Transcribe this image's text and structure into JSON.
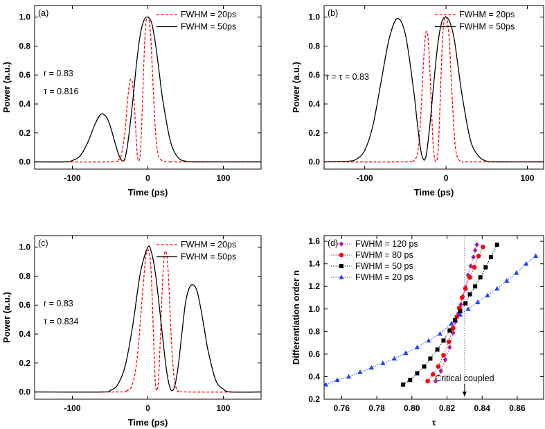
{
  "chart_data": [
    {
      "id": "a",
      "type": "line",
      "panel_label": "(a)",
      "xlabel": "Time (ps)",
      "ylabel": "Power (a.u.)",
      "xlim": [
        -150,
        150
      ],
      "ylim": [
        -0.05,
        1.08
      ],
      "xticks": [
        -100,
        0,
        100
      ],
      "xtick_labels": [
        "-100",
        "0",
        "100"
      ],
      "yticks": [
        0.0,
        0.2,
        0.4,
        0.6,
        0.8,
        1.0
      ],
      "ytick_labels": [
        "0.0",
        "0.2",
        "0.4",
        "0.6",
        "0.8",
        "1.0"
      ],
      "annotation_lines": [
        "r = 0.83",
        "τ = 0.816"
      ],
      "legend_position": "top-right",
      "series": [
        {
          "name": "FWHM = 20ps",
          "color": "#ff0000",
          "dash": "dashed",
          "x": [
            -150,
            -50,
            -40,
            -35,
            -30,
            -27,
            -24,
            -22,
            -20,
            -18,
            -16,
            -14,
            -12,
            -10,
            -8,
            -6,
            -4,
            -2,
            0,
            2,
            4,
            6,
            8,
            10,
            12,
            15,
            20,
            25,
            30,
            40,
            150
          ],
          "y": [
            0,
            0,
            0.01,
            0.05,
            0.22,
            0.42,
            0.55,
            0.57,
            0.53,
            0.4,
            0.22,
            0.05,
            0.005,
            0.06,
            0.28,
            0.58,
            0.85,
            0.98,
            1.0,
            0.97,
            0.85,
            0.63,
            0.41,
            0.22,
            0.1,
            0.03,
            0.005,
            0,
            0,
            0,
            0
          ]
        },
        {
          "name": "FWHM = 50ps",
          "color": "#000000",
          "dash": "solid",
          "x": [
            -150,
            -110,
            -100,
            -90,
            -80,
            -70,
            -62,
            -55,
            -50,
            -45,
            -40,
            -36,
            -33,
            -30,
            -26,
            -20,
            -15,
            -10,
            -5,
            0,
            5,
            10,
            15,
            20,
            30,
            40,
            50,
            60,
            150
          ],
          "y": [
            0,
            0,
            0.01,
            0.04,
            0.13,
            0.26,
            0.33,
            0.31,
            0.25,
            0.16,
            0.07,
            0.02,
            0.005,
            0.03,
            0.15,
            0.42,
            0.68,
            0.88,
            0.98,
            1.0,
            0.96,
            0.82,
            0.62,
            0.42,
            0.14,
            0.03,
            0.005,
            0,
            0
          ]
        }
      ]
    },
    {
      "id": "b",
      "type": "line",
      "panel_label": "(b)",
      "xlabel": "Time (ps)",
      "ylabel": "Power (a.u.)",
      "xlim": [
        -150,
        120
      ],
      "ylim": [
        -0.05,
        1.08
      ],
      "xticks": [
        -100,
        0,
        100
      ],
      "xtick_labels": [
        "-100",
        "0",
        "100"
      ],
      "yticks": [
        0.0,
        0.2,
        0.4,
        0.6,
        0.8,
        1.0
      ],
      "ytick_labels": [
        "0.0",
        "0.2",
        "0.4",
        "0.6",
        "0.8",
        "1.0"
      ],
      "annotation_lines": [
        "r = τ = 0.83"
      ],
      "legend_position": "top-right",
      "series": [
        {
          "name": "FWHM = 20ps",
          "color": "#ff0000",
          "dash": "dashed",
          "x": [
            -150,
            -50,
            -40,
            -35,
            -32,
            -29,
            -26,
            -24,
            -22,
            -20,
            -18,
            -16,
            -14,
            -12,
            -10,
            -8,
            -6,
            -4,
            -2,
            0,
            2,
            4,
            6,
            8,
            10,
            12,
            15,
            20,
            30,
            120
          ],
          "y": [
            0,
            0,
            0.01,
            0.06,
            0.23,
            0.55,
            0.84,
            0.9,
            0.85,
            0.65,
            0.38,
            0.13,
            0.02,
            0.005,
            0.06,
            0.3,
            0.62,
            0.88,
            0.99,
            1.0,
            0.96,
            0.84,
            0.62,
            0.4,
            0.2,
            0.08,
            0.02,
            0,
            0,
            0
          ]
        },
        {
          "name": "FWHM = 50ps",
          "color": "#000000",
          "dash": "solid",
          "x": [
            -150,
            -120,
            -110,
            -100,
            -90,
            -80,
            -70,
            -60,
            -50,
            -40,
            -35,
            -30,
            -25,
            -20,
            -15,
            -10,
            -5,
            0,
            5,
            10,
            15,
            20,
            30,
            40,
            50,
            60,
            120
          ],
          "y": [
            0,
            0.005,
            0.02,
            0.08,
            0.25,
            0.55,
            0.85,
            0.99,
            0.88,
            0.5,
            0.25,
            0.05,
            0.03,
            0.25,
            0.55,
            0.82,
            0.97,
            1.0,
            0.96,
            0.85,
            0.65,
            0.45,
            0.15,
            0.04,
            0.005,
            0,
            0
          ]
        }
      ]
    },
    {
      "id": "c",
      "type": "line",
      "panel_label": "(c)",
      "xlabel": "Time (ps)",
      "ylabel": "Power (a.u.)",
      "xlim": [
        -150,
        150
      ],
      "ylim": [
        -0.05,
        1.08
      ],
      "xticks": [
        -100,
        0,
        100
      ],
      "xtick_labels": [
        "-100",
        "0",
        "100"
      ],
      "yticks": [
        0.0,
        0.2,
        0.4,
        0.6,
        0.8,
        1.0
      ],
      "ytick_labels": [
        "0.0",
        "0.2",
        "0.4",
        "0.6",
        "0.8",
        "1.0"
      ],
      "annotation_lines": [
        "r = 0.83",
        "τ = 0.834"
      ],
      "legend_position": "top-right",
      "series": [
        {
          "name": "FWHM = 20ps",
          "color": "#ff0000",
          "dash": "dashed",
          "x": [
            -150,
            -40,
            -30,
            -24,
            -20,
            -16,
            -12,
            -8,
            -4,
            -2,
            0,
            2,
            4,
            6,
            8,
            10,
            12,
            14,
            16,
            18,
            20,
            22,
            24,
            26,
            28,
            30,
            33,
            36,
            40,
            50,
            150
          ],
          "y": [
            0,
            0,
            0.005,
            0.02,
            0.06,
            0.16,
            0.35,
            0.62,
            0.87,
            0.96,
            0.98,
            0.96,
            0.86,
            0.62,
            0.3,
            0.06,
            0.01,
            0.08,
            0.3,
            0.58,
            0.82,
            0.95,
            0.97,
            0.9,
            0.72,
            0.48,
            0.2,
            0.06,
            0.01,
            0,
            0
          ]
        },
        {
          "name": "FWHM = 50ps",
          "color": "#000000",
          "dash": "solid",
          "x": [
            -150,
            -60,
            -50,
            -40,
            -30,
            -20,
            -10,
            0,
            5,
            10,
            15,
            20,
            25,
            30,
            35,
            40,
            45,
            50,
            55,
            60,
            65,
            70,
            75,
            80,
            90,
            100,
            110,
            150
          ],
          "y": [
            0,
            0,
            0.01,
            0.05,
            0.18,
            0.46,
            0.82,
            1.0,
            0.96,
            0.82,
            0.6,
            0.36,
            0.14,
            0.02,
            0.03,
            0.17,
            0.4,
            0.62,
            0.72,
            0.74,
            0.7,
            0.58,
            0.43,
            0.28,
            0.08,
            0.02,
            0,
            0
          ]
        }
      ]
    },
    {
      "id": "d",
      "type": "line",
      "panel_label": "(d)",
      "xlabel": "τ",
      "ylabel": "Differentiation order n",
      "xlim": [
        0.75,
        0.875
      ],
      "ylim": [
        0.2,
        1.65
      ],
      "xticks": [
        0.76,
        0.78,
        0.8,
        0.82,
        0.84,
        0.86
      ],
      "xtick_labels": [
        "0.76",
        "0.78",
        "0.80",
        "0.82",
        "0.84",
        "0.86"
      ],
      "yticks": [
        0.2,
        0.4,
        0.6,
        0.8,
        1.0,
        1.2,
        1.4,
        1.6
      ],
      "ytick_labels": [
        "0.2",
        "0.4",
        "0.6",
        "0.8",
        "1.0",
        "1.2",
        "1.4",
        "1.6"
      ],
      "critical_tau": 0.83,
      "critical_label": "Critical coupled",
      "legend_position": "top-left",
      "series": [
        {
          "name": "FWHM = 120 ps",
          "color": "#a0209f",
          "marker": "diamond",
          "x": [
            0.8135,
            0.8165,
            0.819,
            0.8215,
            0.8235,
            0.825,
            0.8265,
            0.828,
            0.829,
            0.8305,
            0.832,
            0.8335,
            0.835,
            0.836,
            0.837
          ],
          "y": [
            0.36,
            0.45,
            0.55,
            0.66,
            0.79,
            0.89,
            0.96,
            1.04,
            1.11,
            1.19,
            1.3,
            1.38,
            1.46,
            1.52,
            1.57
          ]
        },
        {
          "name": "FWHM = 80 ps",
          "color": "#ff0000",
          "marker": "circle",
          "x": [
            0.809,
            0.812,
            0.815,
            0.818,
            0.821,
            0.8235,
            0.8255,
            0.827,
            0.8285,
            0.8305,
            0.833,
            0.8355,
            0.838,
            0.8405
          ],
          "y": [
            0.36,
            0.42,
            0.49,
            0.59,
            0.71,
            0.83,
            0.93,
            1.01,
            1.1,
            1.18,
            1.28,
            1.37,
            1.47,
            1.55
          ]
        },
        {
          "name": "FWHM = 50 ps",
          "color": "#000000",
          "marker": "square",
          "x": [
            0.795,
            0.799,
            0.803,
            0.807,
            0.8105,
            0.8145,
            0.818,
            0.8215,
            0.8245,
            0.8275,
            0.8305,
            0.833,
            0.836,
            0.839,
            0.842,
            0.845,
            0.8485
          ],
          "y": [
            0.33,
            0.37,
            0.43,
            0.49,
            0.56,
            0.64,
            0.72,
            0.81,
            0.9,
            0.98,
            1.05,
            1.13,
            1.2,
            1.28,
            1.37,
            1.46,
            1.57
          ]
        },
        {
          "name": "FWHM = 20 ps",
          "color": "#1f3fff",
          "marker": "triangle",
          "x": [
            0.751,
            0.7575,
            0.764,
            0.7705,
            0.777,
            0.7835,
            0.79,
            0.7965,
            0.803,
            0.8095,
            0.816,
            0.8225,
            0.8275,
            0.832,
            0.8375,
            0.843,
            0.8485,
            0.854,
            0.8595,
            0.865,
            0.8705
          ],
          "y": [
            0.33,
            0.37,
            0.4,
            0.44,
            0.48,
            0.52,
            0.56,
            0.61,
            0.66,
            0.72,
            0.78,
            0.87,
            0.95,
            1.0,
            1.06,
            1.12,
            1.18,
            1.25,
            1.32,
            1.4,
            1.47
          ]
        }
      ]
    }
  ]
}
